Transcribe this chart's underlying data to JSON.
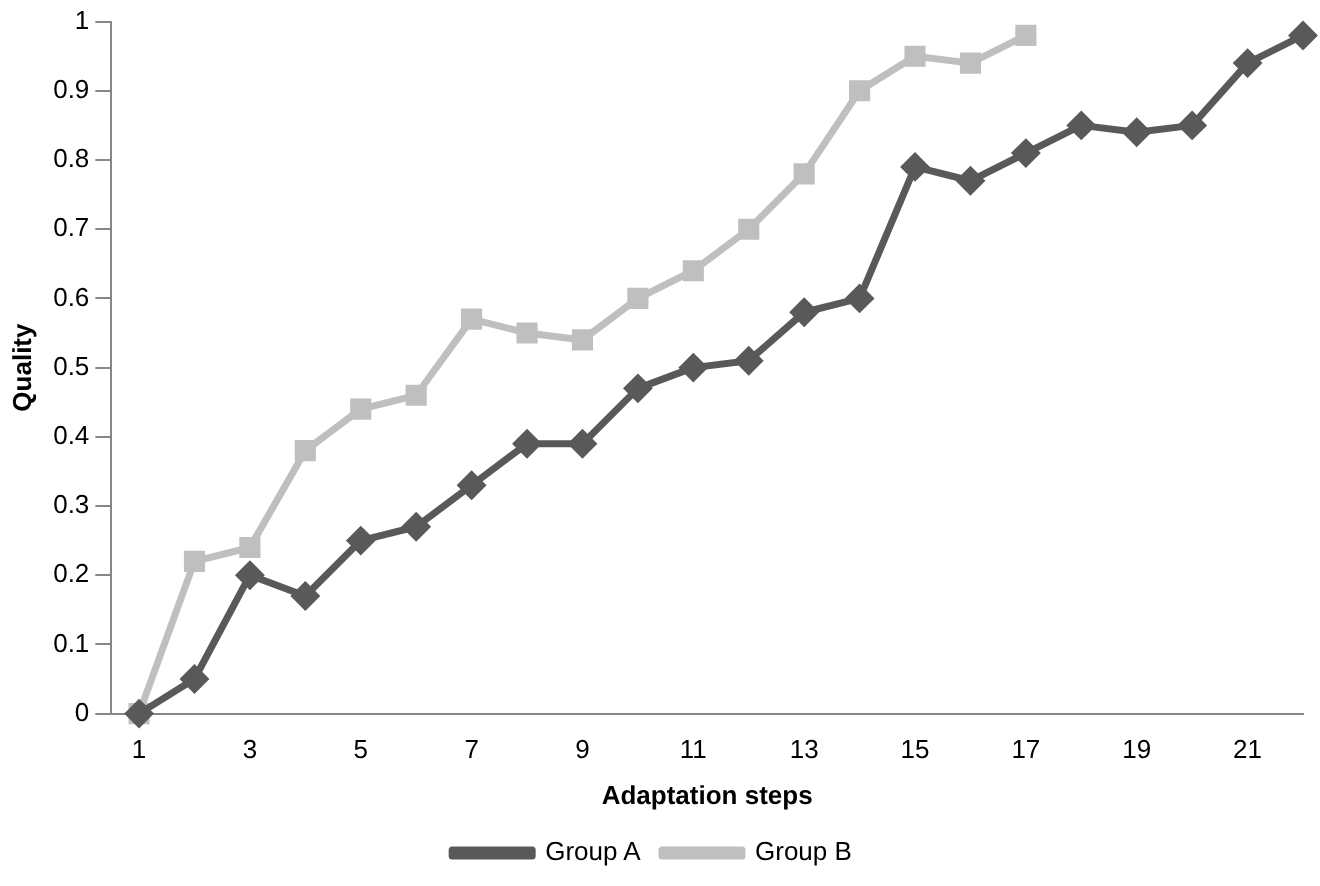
{
  "chart_data": {
    "type": "line",
    "xlabel": "Adaptation steps",
    "ylabel": "Quality",
    "x": [
      1,
      2,
      3,
      4,
      5,
      6,
      7,
      8,
      9,
      10,
      11,
      12,
      13,
      14,
      15,
      16,
      17,
      18,
      19,
      20,
      21,
      22
    ],
    "xlim": [
      0.5,
      22
    ],
    "xticks": [
      1,
      3,
      5,
      7,
      9,
      11,
      13,
      15,
      17,
      19,
      21
    ],
    "series": [
      {
        "name": "Group A",
        "color": "#595959",
        "marker": "diamond",
        "values": [
          0,
          0.05,
          0.2,
          0.17,
          0.25,
          0.27,
          0.33,
          0.39,
          0.39,
          0.47,
          0.5,
          0.51,
          0.58,
          0.6,
          0.79,
          0.77,
          0.81,
          0.85,
          0.84,
          0.85,
          0.94,
          0.98
        ]
      },
      {
        "name": "Group B",
        "color": "#bfbfbf",
        "marker": "square",
        "values": [
          0,
          0.22,
          0.24,
          0.38,
          0.44,
          0.46,
          0.57,
          0.55,
          0.54,
          0.6,
          0.64,
          0.7,
          0.78,
          0.9,
          0.95,
          0.94,
          0.98,
          null,
          null,
          null,
          null,
          null
        ]
      }
    ],
    "ylim": [
      0,
      1
    ],
    "yticks": [
      0,
      0.1,
      0.2,
      0.3,
      0.4,
      0.5,
      0.6,
      0.7,
      0.8,
      0.9,
      1
    ],
    "grid": false,
    "legend": "bottom",
    "line_style": "solid"
  }
}
